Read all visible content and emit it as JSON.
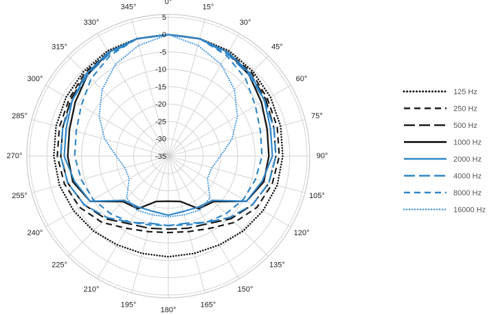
{
  "chart_data": {
    "type": "polar-line",
    "title": "",
    "angle_labels": [
      "0°",
      "15°",
      "30°",
      "45°",
      "60°",
      "75°",
      "90°",
      "105°",
      "120°",
      "135°",
      "150°",
      "165°",
      "180°",
      "195°",
      "210°",
      "225°",
      "240°",
      "255°",
      "270°",
      "285°",
      "300°",
      "315°",
      "330°",
      "345°"
    ],
    "radial_labels": [
      "5",
      "0",
      "-5",
      "-10",
      "-15",
      "-20",
      "-25",
      "-30",
      "-35"
    ],
    "radial_range": [
      -35,
      5
    ],
    "radial_tick_step": 5,
    "angles_deg": [
      0,
      15,
      30,
      45,
      60,
      75,
      90,
      105,
      120,
      135,
      150,
      165,
      180
    ],
    "legend_position": "right",
    "series": [
      {
        "name": "125 Hz",
        "color": "#1a1a1a",
        "dash": "dot",
        "width": 2.6,
        "values": [
          0,
          0,
          0,
          -0.5,
          -1,
          -1.5,
          -2,
          -2.5,
          -3.5,
          -4.5,
          -5.5,
          -6,
          -6
        ]
      },
      {
        "name": "250 Hz",
        "color": "#1a1a1a",
        "dash": "dash",
        "width": 2.2,
        "values": [
          0,
          0,
          -0.5,
          -1,
          -2,
          -2.5,
          -3,
          -4,
          -5.5,
          -8,
          -11,
          -12.5,
          -13
        ]
      },
      {
        "name": "500 Hz",
        "color": "#1a1a1a",
        "dash": "long-dash",
        "width": 2.2,
        "values": [
          0,
          0,
          -0.5,
          -1.5,
          -2.5,
          -3.5,
          -4,
          -5,
          -7,
          -9.5,
          -12.5,
          -13.5,
          -14
        ]
      },
      {
        "name": "1000 Hz",
        "color": "#1a1a1a",
        "dash": "solid",
        "width": 2.4,
        "values": [
          0,
          0,
          -0.5,
          -2,
          -4,
          -5.5,
          -6,
          -6.5,
          -9,
          -16.5,
          -17.5,
          -21.5,
          -22
        ]
      },
      {
        "name": "2000 Hz",
        "color": "#2f86c8",
        "dash": "solid",
        "width": 2.2,
        "values": [
          0,
          0,
          -0.5,
          -1.5,
          -3,
          -4.5,
          -5,
          -7,
          -9,
          -17,
          -18,
          -18.5,
          -18
        ]
      },
      {
        "name": "4000 Hz",
        "color": "#2f86c8",
        "dash": "long-dash",
        "width": 2.2,
        "values": [
          0,
          0,
          -1,
          -2,
          -3,
          -3.5,
          -4,
          -5,
          -7,
          -10,
          -13,
          -15,
          -15
        ]
      },
      {
        "name": "8000 Hz",
        "color": "#2f86c8",
        "dash": "dash",
        "width": 2.2,
        "values": [
          0,
          0,
          -1.5,
          -3.5,
          -6,
          -7.5,
          -8,
          -9,
          -10,
          -11.5,
          -13,
          -14.5,
          -15
        ]
      },
      {
        "name": "16000 Hz",
        "color": "#4b9be0",
        "dash": "dot",
        "width": 2.2,
        "values": [
          0,
          -2,
          -4.5,
          -8,
          -12,
          -16,
          -20,
          -22,
          -22,
          -18,
          -17,
          -17.5,
          -17.5
        ]
      }
    ]
  }
}
